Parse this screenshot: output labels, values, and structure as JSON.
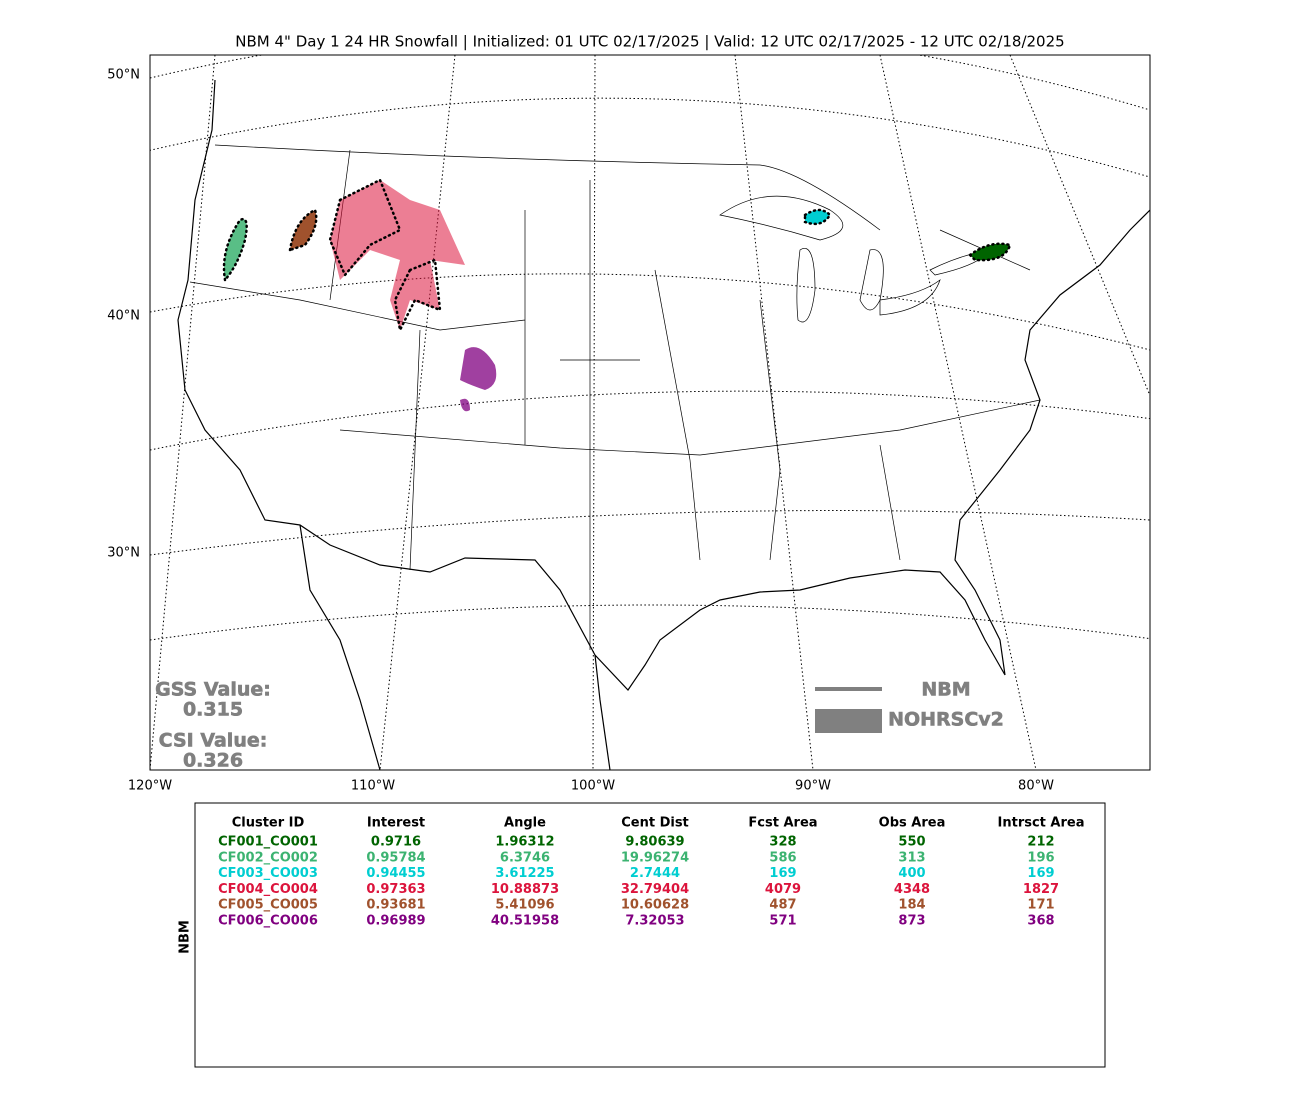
{
  "title": "NBM 4\" Day 1 24 HR Snowfall | Initialized: 01 UTC 02/17/2025 | Valid: 12 UTC 02/17/2025 - 12 UTC 02/18/2025",
  "map": {
    "lat_labels": [
      "50°N",
      "40°N",
      "30°N"
    ],
    "lon_labels": [
      "120°W",
      "110°W",
      "100°W",
      "90°W",
      "80°W"
    ]
  },
  "scores": {
    "gss_label": "GSS Value:",
    "gss_value": "0.315",
    "csi_label": "CSI Value:",
    "csi_value": "0.326"
  },
  "legend": {
    "line_label": "NBM",
    "area_label": "NOHRSCv2",
    "color": "#808080"
  },
  "table": {
    "side_label": "NBM",
    "header": [
      "Cluster ID",
      "Interest",
      "Angle",
      "Cent Dist",
      "Fcst Area",
      "Obs Area",
      "Intrsct Area"
    ],
    "row_colors": [
      "#006400",
      "#3cb371",
      "#00ced1",
      "#dc143c",
      "#a0522d",
      "#800080"
    ],
    "rows": [
      [
        "CF001_CO001",
        "0.9716",
        "1.96312",
        "9.80639",
        "328",
        "550",
        "212"
      ],
      [
        "CF002_CO002",
        "0.95784",
        "6.3746",
        "19.96274",
        "586",
        "313",
        "196"
      ],
      [
        "CF003_CO003",
        "0.94455",
        "3.61225",
        "2.7444",
        "169",
        "400",
        "169"
      ],
      [
        "CF004_CO004",
        "0.97363",
        "10.88873",
        "32.79404",
        "4079",
        "4348",
        "1827"
      ],
      [
        "CF005_CO005",
        "0.93681",
        "5.41096",
        "10.60628",
        "487",
        "184",
        "171"
      ],
      [
        "CF006_CO006",
        "0.96989",
        "40.51958",
        "7.32053",
        "571",
        "873",
        "368"
      ]
    ]
  }
}
